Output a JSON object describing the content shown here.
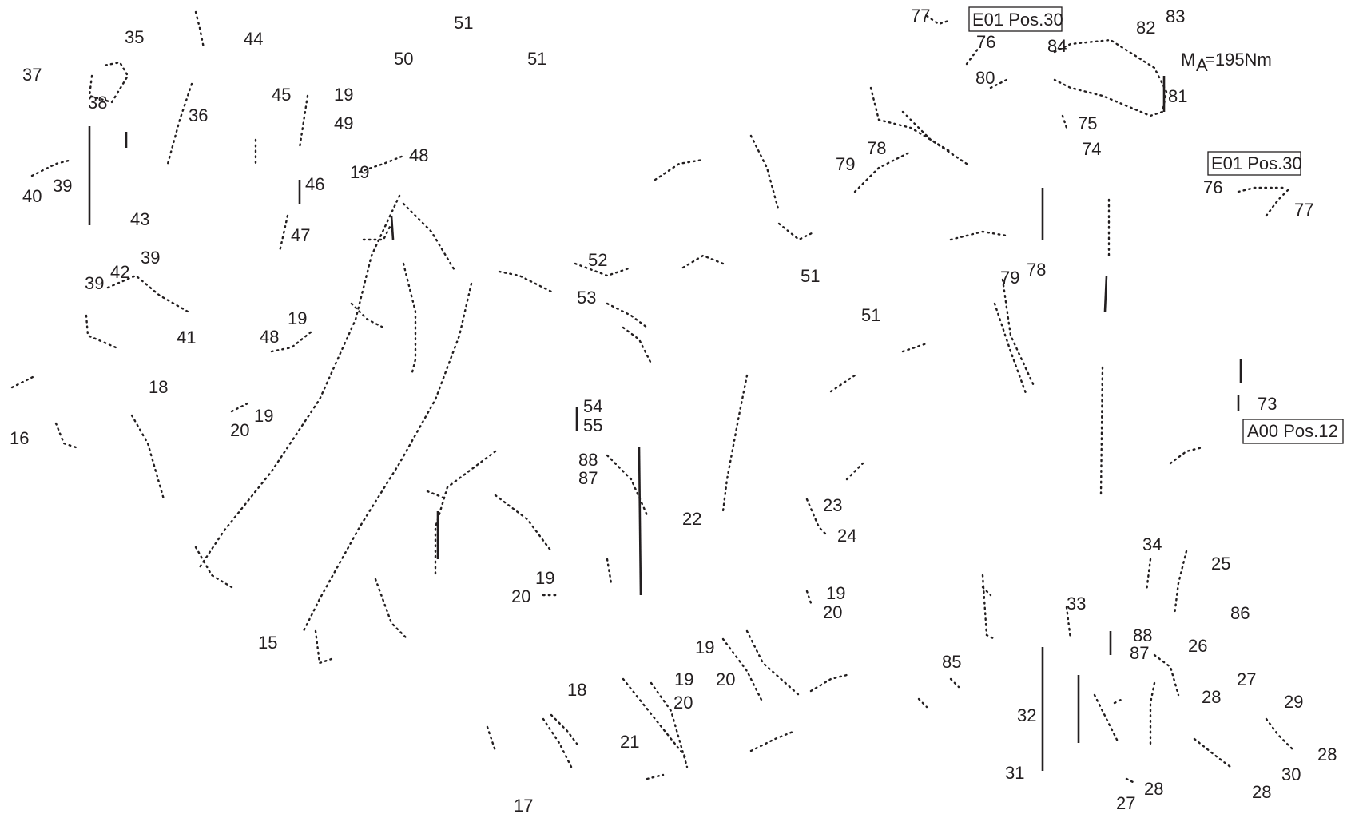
{
  "labels": [
    "77",
    "E01 Pos.30",
    "82",
    "83",
    "76",
    "84",
    "M",
    "A",
    "=195Nm",
    "80",
    "81",
    "75",
    "74",
    "E01 Pos.30",
    "76",
    "77",
    "35",
    "44",
    "51",
    "51",
    "50",
    "37",
    "38",
    "36",
    "45",
    "19",
    "49",
    "19",
    "48",
    "40",
    "39",
    "46",
    "43",
    "47",
    "39",
    "42",
    "39",
    "41",
    "48",
    "19",
    "18",
    "16",
    "20",
    "19",
    "52",
    "53",
    "51",
    "51",
    "54",
    "55",
    "88",
    "87",
    "73",
    "A00 Pos.12",
    "22",
    "23",
    "24",
    "19",
    "20",
    "19",
    "20",
    "15",
    "19",
    "18",
    "20",
    "19",
    "20",
    "21",
    "17",
    "85",
    "34",
    "25",
    "33",
    "88",
    "87",
    "26",
    "86",
    "27",
    "28",
    "29",
    "32",
    "31",
    "27",
    "28",
    "28",
    "30",
    "28",
    "79",
    "78",
    "79",
    "78"
  ],
  "line_color": "#231f20"
}
